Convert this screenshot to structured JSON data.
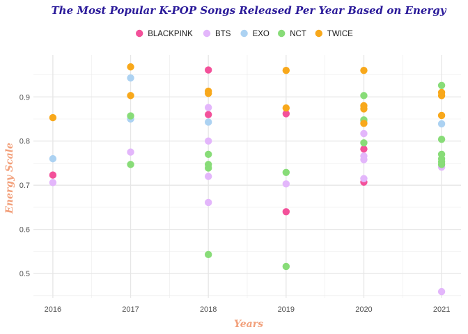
{
  "chart_data": {
    "type": "scatter",
    "title": "The Most Popular K-POP Songs Released Per Year Based on Energy",
    "xlabel": "Years",
    "ylabel": "Energy Scale",
    "x_categories": [
      "2016",
      "2017",
      "2018",
      "2019",
      "2020",
      "2021"
    ],
    "y_ticks": [
      "0.5",
      "0.6",
      "0.7",
      "0.8",
      "0.9"
    ],
    "xlim": [
      2015.75,
      2021.25
    ],
    "ylim": [
      0.445,
      0.995
    ],
    "grid": true,
    "legend_position": "top",
    "series": [
      {
        "name": "BLACKPINK",
        "color": "#f3519a",
        "points": [
          {
            "x": 2016,
            "y": 0.723
          },
          {
            "x": 2018,
            "y": 0.961
          },
          {
            "x": 2018,
            "y": 0.86
          },
          {
            "x": 2019,
            "y": 0.862
          },
          {
            "x": 2019,
            "y": 0.64
          },
          {
            "x": 2020,
            "y": 0.782
          },
          {
            "x": 2020,
            "y": 0.707
          }
        ]
      },
      {
        "name": "BTS",
        "color": "#e3b6fb",
        "points": [
          {
            "x": 2016,
            "y": 0.706
          },
          {
            "x": 2017,
            "y": 0.775
          },
          {
            "x": 2018,
            "y": 0.876
          },
          {
            "x": 2018,
            "y": 0.8
          },
          {
            "x": 2018,
            "y": 0.72
          },
          {
            "x": 2018,
            "y": 0.661
          },
          {
            "x": 2019,
            "y": 0.703
          },
          {
            "x": 2020,
            "y": 0.817
          },
          {
            "x": 2020,
            "y": 0.766
          },
          {
            "x": 2020,
            "y": 0.758
          },
          {
            "x": 2020,
            "y": 0.715
          },
          {
            "x": 2021,
            "y": 0.741
          },
          {
            "x": 2021,
            "y": 0.459
          }
        ]
      },
      {
        "name": "EXO",
        "color": "#acd2f2",
        "points": [
          {
            "x": 2016,
            "y": 0.76
          },
          {
            "x": 2017,
            "y": 0.943
          },
          {
            "x": 2017,
            "y": 0.85
          },
          {
            "x": 2018,
            "y": 0.843
          },
          {
            "x": 2020,
            "y": 0.845
          },
          {
            "x": 2021,
            "y": 0.839
          }
        ]
      },
      {
        "name": "NCT",
        "color": "#88dc78",
        "points": [
          {
            "x": 2017,
            "y": 0.857
          },
          {
            "x": 2017,
            "y": 0.747
          },
          {
            "x": 2018,
            "y": 0.77
          },
          {
            "x": 2018,
            "y": 0.747
          },
          {
            "x": 2018,
            "y": 0.739
          },
          {
            "x": 2018,
            "y": 0.543
          },
          {
            "x": 2019,
            "y": 0.729
          },
          {
            "x": 2019,
            "y": 0.516
          },
          {
            "x": 2020,
            "y": 0.903
          },
          {
            "x": 2020,
            "y": 0.848
          },
          {
            "x": 2020,
            "y": 0.796
          },
          {
            "x": 2021,
            "y": 0.926
          },
          {
            "x": 2021,
            "y": 0.804
          },
          {
            "x": 2021,
            "y": 0.77
          },
          {
            "x": 2021,
            "y": 0.76
          },
          {
            "x": 2021,
            "y": 0.753
          },
          {
            "x": 2021,
            "y": 0.747
          }
        ]
      },
      {
        "name": "TWICE",
        "color": "#f8a81b",
        "points": [
          {
            "x": 2016,
            "y": 0.853
          },
          {
            "x": 2017,
            "y": 0.968
          },
          {
            "x": 2017,
            "y": 0.903
          },
          {
            "x": 2018,
            "y": 0.913
          },
          {
            "x": 2018,
            "y": 0.908
          },
          {
            "x": 2019,
            "y": 0.96
          },
          {
            "x": 2019,
            "y": 0.875
          },
          {
            "x": 2020,
            "y": 0.96
          },
          {
            "x": 2020,
            "y": 0.88
          },
          {
            "x": 2020,
            "y": 0.873
          },
          {
            "x": 2020,
            "y": 0.84
          },
          {
            "x": 2021,
            "y": 0.91
          },
          {
            "x": 2021,
            "y": 0.903
          },
          {
            "x": 2021,
            "y": 0.858
          }
        ]
      }
    ]
  }
}
